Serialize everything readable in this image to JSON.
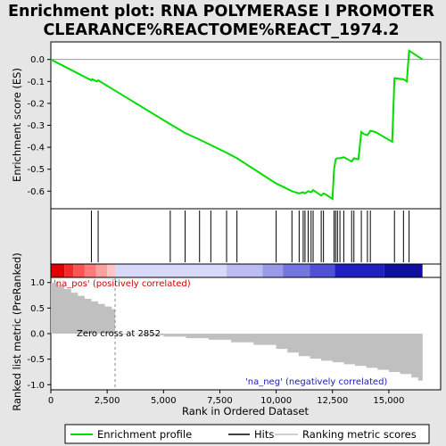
{
  "chart_data": {
    "type": "line",
    "title_line1": "Enrichment plot: RNA POLYMERASE I PROMOTER",
    "title_line2": "CLEARANCE%REACTOME%REACT_1974.2",
    "xlabel": "Rank in Ordered Dataset",
    "xlim": [
      0,
      17300
    ],
    "x_ticks": [
      0,
      2500,
      5000,
      7500,
      10000,
      12500,
      15000
    ],
    "x_tick_labels": [
      "0",
      "2,500",
      "5,000",
      "7,500",
      "10,000",
      "12,500",
      "15,000"
    ],
    "es_panel": {
      "ylabel": "Enrichment score (ES)",
      "ylim": [
        -0.68,
        0.08
      ],
      "y_ticks": [
        0.0,
        -0.1,
        -0.2,
        -0.3,
        -0.4,
        -0.5,
        -0.6
      ],
      "y_tick_labels": [
        "0.0",
        "-0.1",
        "-0.2",
        "-0.3",
        "-0.4",
        "-0.5",
        "-0.6"
      ],
      "series": [
        {
          "name": "Enrichment profile",
          "color": "#00dd00",
          "x": [
            0,
            1800,
            1830,
            2050,
            2100,
            5300,
            5960,
            6600,
            7100,
            7800,
            8260,
            10000,
            10700,
            11020,
            11200,
            11280,
            11420,
            11550,
            11640,
            12000,
            12100,
            12200,
            12500,
            12570,
            12640,
            12720,
            12830,
            13000,
            13350,
            13450,
            13650,
            13780,
            13900,
            14050,
            14180,
            14400,
            15150,
            15250,
            15650,
            15800,
            15900,
            16500
          ],
          "y": [
            0.0,
            -0.095,
            -0.09,
            -0.1,
            -0.095,
            -0.295,
            -0.335,
            -0.365,
            -0.39,
            -0.425,
            -0.45,
            -0.565,
            -0.6,
            -0.61,
            -0.605,
            -0.61,
            -0.6,
            -0.605,
            -0.595,
            -0.62,
            -0.61,
            -0.615,
            -0.635,
            -0.5,
            -0.455,
            -0.45,
            -0.45,
            -0.445,
            -0.465,
            -0.45,
            -0.455,
            -0.33,
            -0.34,
            -0.345,
            -0.325,
            -0.33,
            -0.375,
            -0.085,
            -0.09,
            -0.1,
            0.04,
            0.0
          ]
        }
      ]
    },
    "hits": {
      "name": "Hits",
      "x": [
        1800,
        2100,
        5300,
        5960,
        6600,
        7100,
        7800,
        8260,
        10000,
        10700,
        11020,
        11200,
        11280,
        11420,
        11550,
        11640,
        12000,
        12100,
        12570,
        12640,
        12720,
        12830,
        13000,
        13350,
        13450,
        13780,
        14050,
        14180,
        15250,
        15650,
        15900
      ]
    },
    "rank_panel": {
      "ylabel": "Ranked list metric (PreRanked)",
      "ylim": [
        -1.1,
        1.1
      ],
      "y_ticks": [
        1.0,
        0.5,
        0.0,
        -0.5,
        -1.0
      ],
      "y_tick_labels": [
        "1.0",
        "0.5",
        "0.0",
        "-0.5",
        "-1.0"
      ],
      "series_name": "Ranking metric scores",
      "color": "#c0c0c0",
      "x": [
        0,
        300,
        600,
        900,
        1200,
        1500,
        1800,
        2100,
        2400,
        2700,
        2852,
        3000,
        4000,
        5000,
        6000,
        7000,
        8000,
        9000,
        10000,
        10500,
        11000,
        11500,
        12000,
        12500,
        13000,
        13500,
        14000,
        14500,
        15000,
        15500,
        16000,
        16300,
        16500
      ],
      "y": [
        1.0,
        0.94,
        0.87,
        0.8,
        0.74,
        0.68,
        0.63,
        0.58,
        0.53,
        0.48,
        0.0,
        -0.01,
        -0.03,
        -0.06,
        -0.09,
        -0.12,
        -0.17,
        -0.22,
        -0.3,
        -0.37,
        -0.44,
        -0.49,
        -0.53,
        -0.56,
        -0.6,
        -0.63,
        -0.67,
        -0.71,
        -0.75,
        -0.79,
        -0.86,
        -0.92,
        -0.97
      ]
    },
    "annotations": {
      "pos_label": "'na_pos' (positively correlated)",
      "neg_label": "'na_neg' (negatively correlated)",
      "zero_cross": "Zero cross at 2852",
      "zero_cross_x": 2852
    },
    "heatbar": {
      "x_end": 16500,
      "segments": [
        {
          "x0": 0,
          "x1": 600,
          "color": "#e00000"
        },
        {
          "x0": 600,
          "x1": 1000,
          "color": "#f22a2a"
        },
        {
          "x0": 1000,
          "x1": 1500,
          "color": "#f85555"
        },
        {
          "x0": 1500,
          "x1": 2000,
          "color": "#fb7a7a"
        },
        {
          "x0": 2000,
          "x1": 2500,
          "color": "#fca0a0"
        },
        {
          "x0": 2500,
          "x1": 2852,
          "color": "#fdc4c4"
        },
        {
          "x0": 2852,
          "x1": 7800,
          "color": "#d8d8f8"
        },
        {
          "x0": 7800,
          "x1": 9400,
          "color": "#bcbcf2"
        },
        {
          "x0": 9400,
          "x1": 10300,
          "color": "#9a9aea"
        },
        {
          "x0": 10300,
          "x1": 11500,
          "color": "#7575e0"
        },
        {
          "x0": 11500,
          "x1": 12600,
          "color": "#5050d4"
        },
        {
          "x0": 12600,
          "x1": 14800,
          "color": "#2020c0"
        },
        {
          "x0": 14800,
          "x1": 16500,
          "color": "#1010a0"
        }
      ]
    },
    "legend": [
      "Enrichment profile",
      "Hits",
      "Ranking metric scores"
    ],
    "legend_placement": "bottom"
  }
}
